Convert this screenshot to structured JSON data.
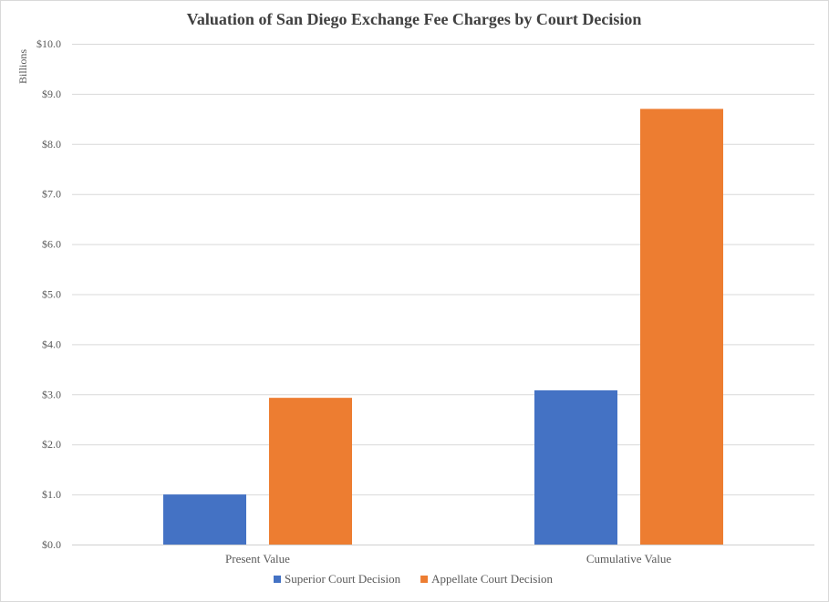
{
  "chart_data": {
    "type": "bar",
    "title": "Valuation of San Diego Exchange Fee Charges by Court Decision",
    "ylabel": "Billions",
    "xlabel": "",
    "ylim": [
      0,
      10
    ],
    "y_ticks": [
      0,
      1,
      2,
      3,
      4,
      5,
      6,
      7,
      8,
      9,
      10
    ],
    "y_tick_labels": [
      "$0.0",
      "$1.0",
      "$2.0",
      "$3.0",
      "$4.0",
      "$5.0",
      "$6.0",
      "$7.0",
      "$8.0",
      "$9.0",
      "$10.0"
    ],
    "categories": [
      "Present Value",
      "Cumulative Value"
    ],
    "series": [
      {
        "name": "Superior Court Decision",
        "color": "#4472C4",
        "values": [
          1.0,
          3.08
        ]
      },
      {
        "name": "Appellate Court Decision",
        "color": "#ED7D31",
        "values": [
          2.93,
          8.7
        ]
      }
    ],
    "grid": true,
    "legend_position": "bottom"
  }
}
